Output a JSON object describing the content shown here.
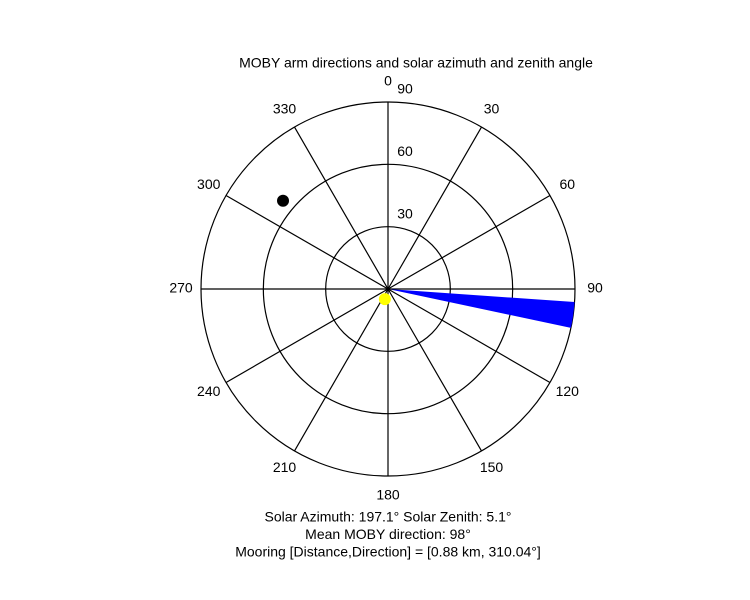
{
  "chart_data": {
    "type": "polar",
    "title": "MOBY arm directions and solar azimuth and zenith angle",
    "rlim": [
      0,
      90
    ],
    "rticks": [
      30,
      60,
      90
    ],
    "theta_ticks": [
      0,
      30,
      60,
      90,
      120,
      150,
      180,
      210,
      240,
      270,
      300,
      330
    ],
    "wedge": {
      "color": "#0000ff",
      "theta": [
        94,
        102
      ],
      "r": 90
    },
    "points": [
      {
        "color": "#000000",
        "theta": 310.04,
        "r": 66
      },
      {
        "color": "#ffff00",
        "theta": 197.1,
        "r": 5.1
      }
    ],
    "annotations": [
      "Solar Azimuth: 197.1°   Solar Zenith: 5.1°",
      "Mean MOBY direction: 98°",
      "Mooring [Distance,Direction] = [0.88 km, 310.04°]"
    ]
  }
}
